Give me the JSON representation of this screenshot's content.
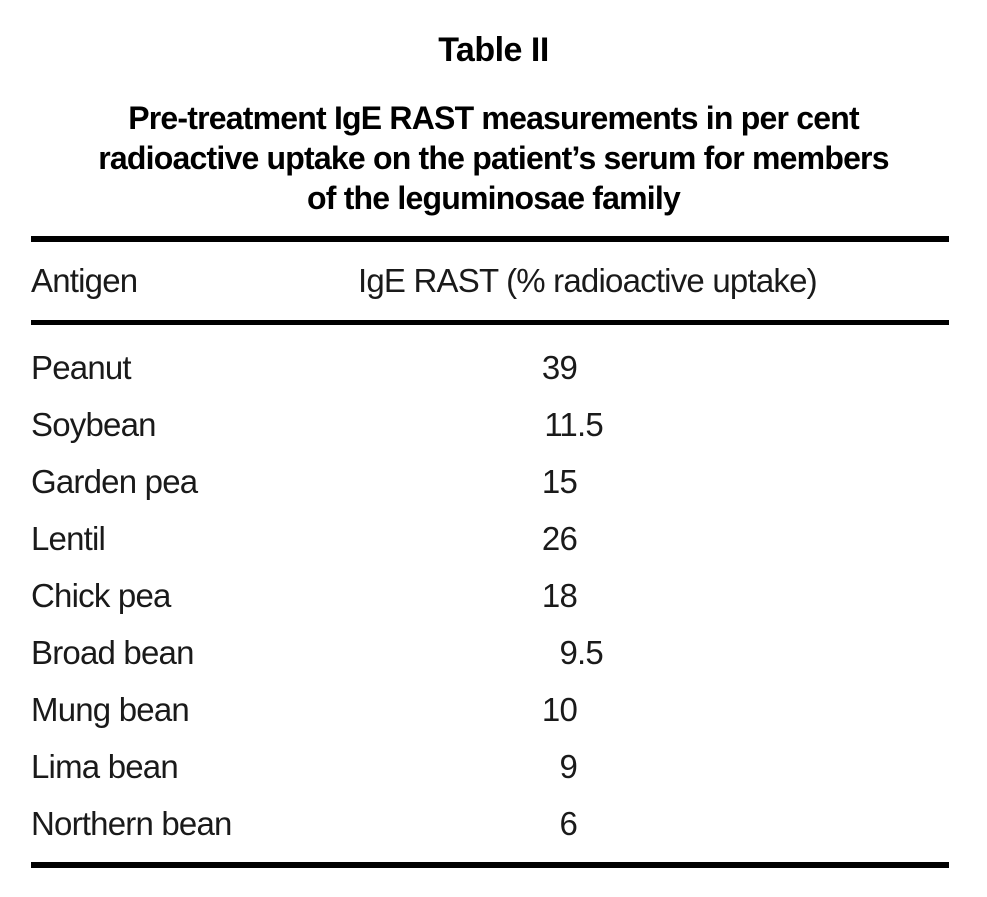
{
  "document": {
    "table_label": "Table II",
    "caption_lines": [
      "Pre-treatment IgE RAST measurements in per cent",
      "radioactive uptake on the patient’s serum for members",
      "of the leguminosae family"
    ],
    "table": {
      "columns": [
        "Antigen",
        "IgE RAST (% radioactive uptake)"
      ],
      "rows": [
        {
          "antigen": "Peanut",
          "value": "39"
        },
        {
          "antigen": "Soybean",
          "value": "11.5"
        },
        {
          "antigen": "Garden pea",
          "value": "15"
        },
        {
          "antigen": "Lentil",
          "value": "26"
        },
        {
          "antigen": "Chick pea",
          "value": "18"
        },
        {
          "antigen": "Broad bean",
          "value": "9.5"
        },
        {
          "antigen": "Mung bean",
          "value": "10"
        },
        {
          "antigen": "Lima bean",
          "value": "9"
        },
        {
          "antigen": "Northern bean",
          "value": "6"
        }
      ]
    },
    "colors": {
      "text": "#000000",
      "background": "#ffffff",
      "rule": "#000000"
    }
  },
  "chart_data": {
    "type": "table",
    "title": "Table II — Pre-treatment IgE RAST measurements in per cent radioactive uptake on the patient’s serum for members of the leguminosae family",
    "columns": [
      "Antigen",
      "IgE RAST (% radioactive uptake)"
    ],
    "categories": [
      "Peanut",
      "Soybean",
      "Garden pea",
      "Lentil",
      "Chick pea",
      "Broad bean",
      "Mung bean",
      "Lima bean",
      "Northern bean"
    ],
    "values": [
      39,
      11.5,
      15,
      26,
      18,
      9.5,
      10,
      9,
      6
    ]
  }
}
